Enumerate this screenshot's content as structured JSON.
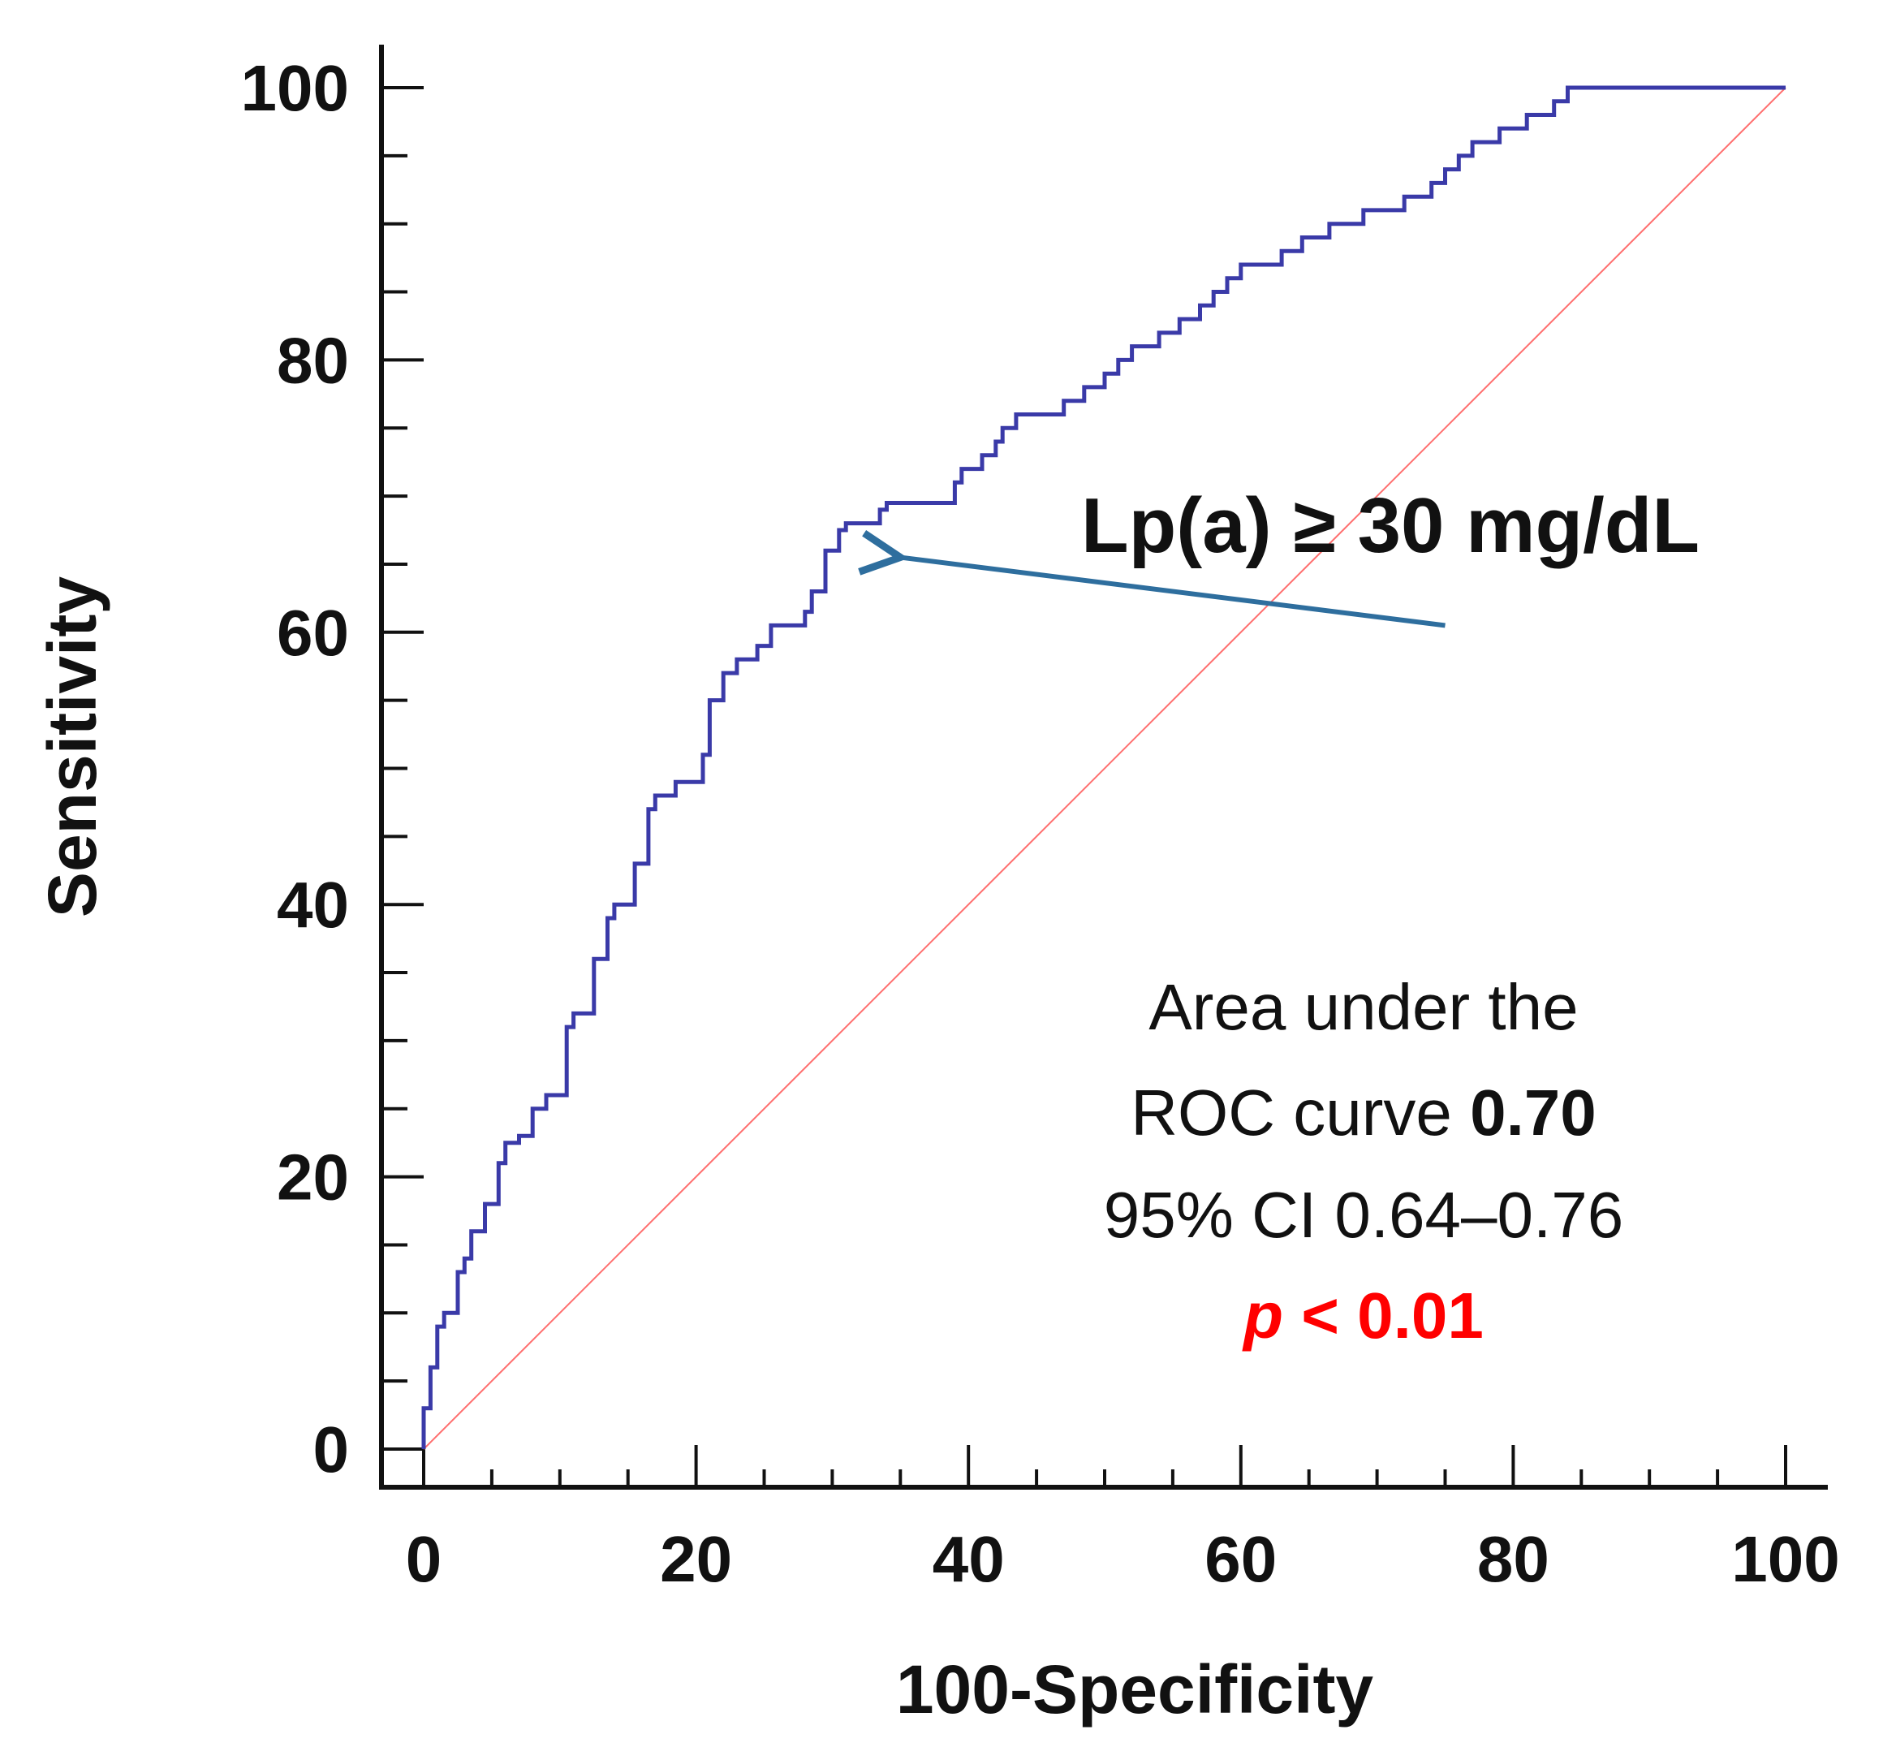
{
  "chart_data": {
    "type": "line",
    "title": "",
    "xlabel": "100-Specificity",
    "ylabel": "Sensitivity",
    "xlim": [
      0,
      100
    ],
    "ylim": [
      0,
      100
    ],
    "xticks": [
      0,
      20,
      40,
      60,
      80,
      100
    ],
    "yticks": [
      0,
      20,
      40,
      60,
      80,
      100
    ],
    "grid": false,
    "series": [
      {
        "name": "ROC curve",
        "color": "#3a3aa8",
        "x": [
          0,
          0,
          0.5,
          0.5,
          1,
          1,
          1.5,
          1.5,
          2.5,
          2.5,
          3,
          3,
          3.5,
          3.5,
          4.5,
          4.5,
          5.5,
          5.5,
          6,
          6,
          7,
          7,
          8,
          8,
          9,
          9,
          10.5,
          10.5,
          11,
          11,
          12.5,
          12.5,
          13.5,
          13.5,
          14,
          14,
          15.5,
          15.5,
          16.5,
          16.5,
          17,
          17,
          18.5,
          18.5,
          20.5,
          20.5,
          21,
          21,
          22,
          22,
          23,
          23,
          24.5,
          24.5,
          25.5,
          25.5,
          28,
          28,
          28.5,
          28.5,
          29.5,
          29.5,
          30.5,
          30.5,
          31,
          31,
          33.5,
          33.5,
          34,
          34,
          39,
          39,
          39.5,
          39.5,
          41,
          41,
          42,
          42,
          42.5,
          42.5,
          43.5,
          43.5,
          47,
          47,
          48.5,
          48.5,
          50,
          50,
          51,
          51,
          52,
          52,
          54,
          54,
          55.5,
          55.5,
          57,
          57,
          58,
          58,
          59,
          59,
          60,
          60,
          63,
          63,
          64.5,
          64.5,
          66.5,
          66.5,
          69,
          69,
          72,
          72,
          74,
          74,
          75,
          75,
          76,
          76,
          77,
          77,
          79,
          79,
          81,
          81,
          83,
          83,
          84,
          84,
          85,
          85,
          86.5,
          86.5,
          89,
          89,
          90.5,
          90.5,
          91.5,
          91.5,
          100
        ],
        "y": [
          0,
          3,
          3,
          6,
          6,
          9,
          9,
          10,
          10,
          13,
          13,
          14,
          14,
          16,
          16,
          18,
          18,
          21,
          21,
          22.5,
          22.5,
          23,
          23,
          25,
          25,
          26,
          26,
          31,
          31,
          32,
          32,
          36,
          36,
          39,
          39,
          40,
          40,
          43,
          43,
          47,
          47,
          48,
          48,
          49,
          49,
          51,
          51,
          55,
          55,
          57,
          57,
          58,
          58,
          59,
          59,
          60.5,
          60.5,
          61.5,
          61.5,
          63,
          63,
          66,
          66,
          67.5,
          67.5,
          68,
          68,
          69,
          69,
          69.5,
          69.5,
          71,
          71,
          72,
          72,
          73,
          73,
          74,
          74,
          75,
          75,
          76,
          76,
          77,
          77,
          78,
          78,
          79,
          79,
          80,
          80,
          81,
          81,
          82,
          82,
          83,
          83,
          84,
          84,
          85,
          85,
          86,
          86,
          87,
          87,
          88,
          88,
          89,
          89,
          90,
          90,
          91,
          91,
          92,
          92,
          93,
          93,
          94,
          94,
          95,
          95,
          96,
          96,
          97,
          97,
          98,
          98,
          99,
          99,
          100,
          100,
          100,
          100,
          100,
          100,
          100,
          100,
          100,
          100,
          100,
          100
        ]
      },
      {
        "name": "Reference line",
        "color": "#ff6f6f",
        "x": [
          0,
          100
        ],
        "y": [
          0,
          100
        ]
      }
    ],
    "annotations": {
      "cutoff_label": "Lp(a) ≥ 30 mg/dL",
      "cutoff_point": {
        "x": 35,
        "y": 65.5
      },
      "arrow_from": {
        "x": 75,
        "y": 60.5
      },
      "arrow_color": "#2e6e9e",
      "auc_line1": "Area under the",
      "auc_line2_prefix": "ROC curve ",
      "auc_value": "0.70",
      "auc_ci": "95% CI 0.64–0.76",
      "p_symbol": "p",
      "p_rest": " < 0.01",
      "p_color": "#ff0000"
    }
  }
}
